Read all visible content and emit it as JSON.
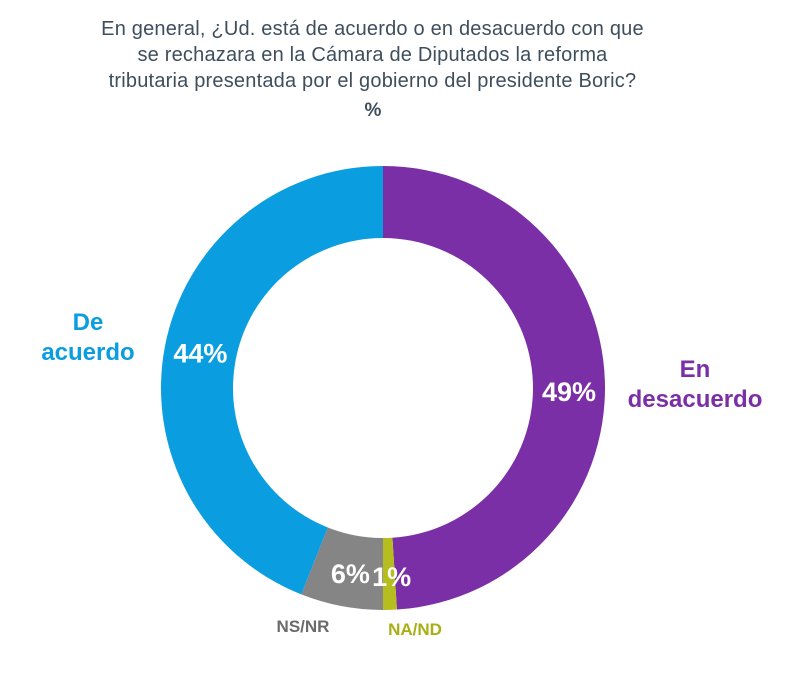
{
  "chart_data": {
    "type": "pie",
    "variant": "donut",
    "title_lines": [
      "En general, ¿Ud. está de acuerdo o en desacuerdo con que",
      "se rechazara en la Cámara de Diputados la reforma",
      "tributaria presentada por el gobierno del presidente Boric?"
    ],
    "unit": "%",
    "slices": [
      {
        "label": "En desacuerdo",
        "label_lines": [
          "En",
          "desacuerdo"
        ],
        "value": 49,
        "value_label": "49%",
        "color": "#7b2fa6"
      },
      {
        "label": "NA/ND",
        "label_lines": [
          "NA/ND"
        ],
        "value": 1,
        "value_label": "1%",
        "color": "#b5bd1f"
      },
      {
        "label": "NS/NR",
        "label_lines": [
          "NS/NR"
        ],
        "value": 6,
        "value_label": "6%",
        "color": "#858585"
      },
      {
        "label": "De acuerdo",
        "label_lines": [
          "De",
          "acuerdo"
        ],
        "value": 44,
        "value_label": "44%",
        "color": "#0a9ddf"
      }
    ]
  },
  "colors": {
    "title": "#3f4e5c",
    "ns_nr_label": "#6b6b6b",
    "na_nd_label": "#a8ae14"
  }
}
